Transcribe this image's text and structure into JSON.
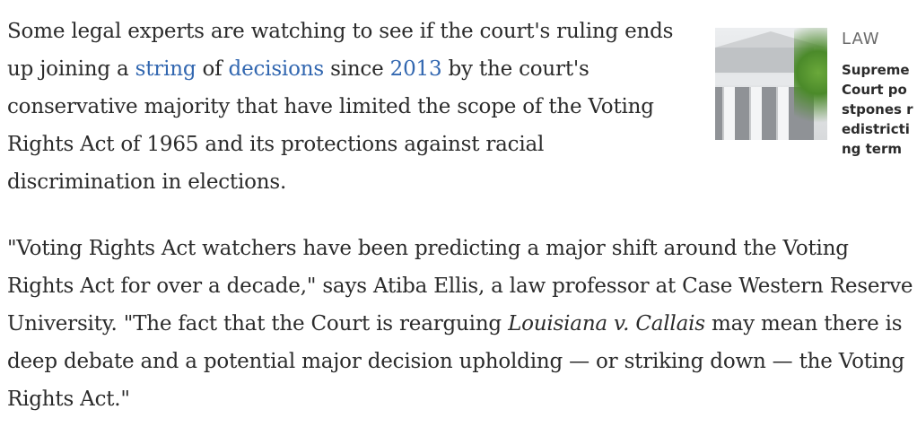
{
  "paragraph1": {
    "t1": "Some legal experts are watching to see if the court's ruling ends up joining a ",
    "link1": "string",
    "t2": " of ",
    "link2": "decisions",
    "t3": " since ",
    "link3": "2013",
    "t4": " by the court's conservative majority that have limited the scope of the Voting Rights Act of 1965 and its protections against racial discrimination in elections."
  },
  "paragraph2": {
    "t1": "\"Voting Rights Act watchers have been predicting a major shift around the Voting Rights Act for over a decade,\" says Atiba Ellis, a law professor at Case Western Reserve University. \"The fact that the Court is rearguing ",
    "case": "Louisiana v. Callais",
    "t2": " may mean there is deep debate and a potential major decision upholding — or striking down — the Voting Rights Act.\""
  },
  "related": {
    "category": "LAW",
    "headline": "Supreme Court postpones redistricting term",
    "image": "supreme-court-building"
  }
}
